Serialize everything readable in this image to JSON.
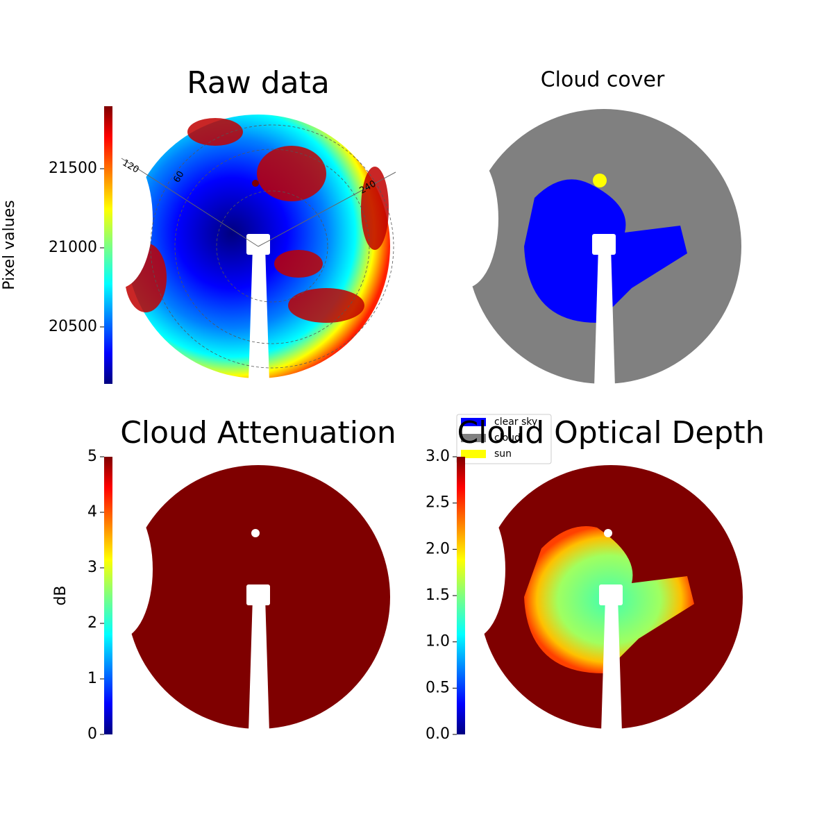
{
  "chart_data": [
    {
      "type": "image",
      "title": "Raw data",
      "annotations": [
        "120",
        "60",
        "240"
      ],
      "colorbar": {
        "label": "Pixel values",
        "colormap": "jet",
        "ylim": [
          20140,
          21895
        ],
        "yticks": [
          20500,
          21000,
          21500
        ]
      }
    },
    {
      "type": "image",
      "title": "Cloud cover",
      "legend": {
        "location": "lower left",
        "series": [
          {
            "name": "clear sky",
            "color": "#0000ff"
          },
          {
            "name": "cloud",
            "color": "#808080"
          },
          {
            "name": "sun",
            "color": "#ffff00"
          }
        ]
      }
    },
    {
      "type": "image",
      "title": "Cloud Attenuation",
      "colorbar": {
        "label": "dB",
        "colormap": "jet",
        "ylim": [
          0,
          5
        ],
        "yticks": [
          0,
          1,
          2,
          3,
          4,
          5
        ]
      }
    },
    {
      "type": "image",
      "title": "Cloud Optical Depth",
      "colorbar": {
        "colormap": "jet",
        "ylim": [
          0,
          3
        ],
        "yticks": [
          {
            "value": 0,
            "label": "0.0"
          },
          0.5,
          {
            "value": 1,
            "label": "1.0"
          },
          1.5,
          {
            "value": 2,
            "label": "2.0"
          },
          2.5,
          {
            "value": 3,
            "label": "3.0"
          }
        ]
      }
    }
  ]
}
